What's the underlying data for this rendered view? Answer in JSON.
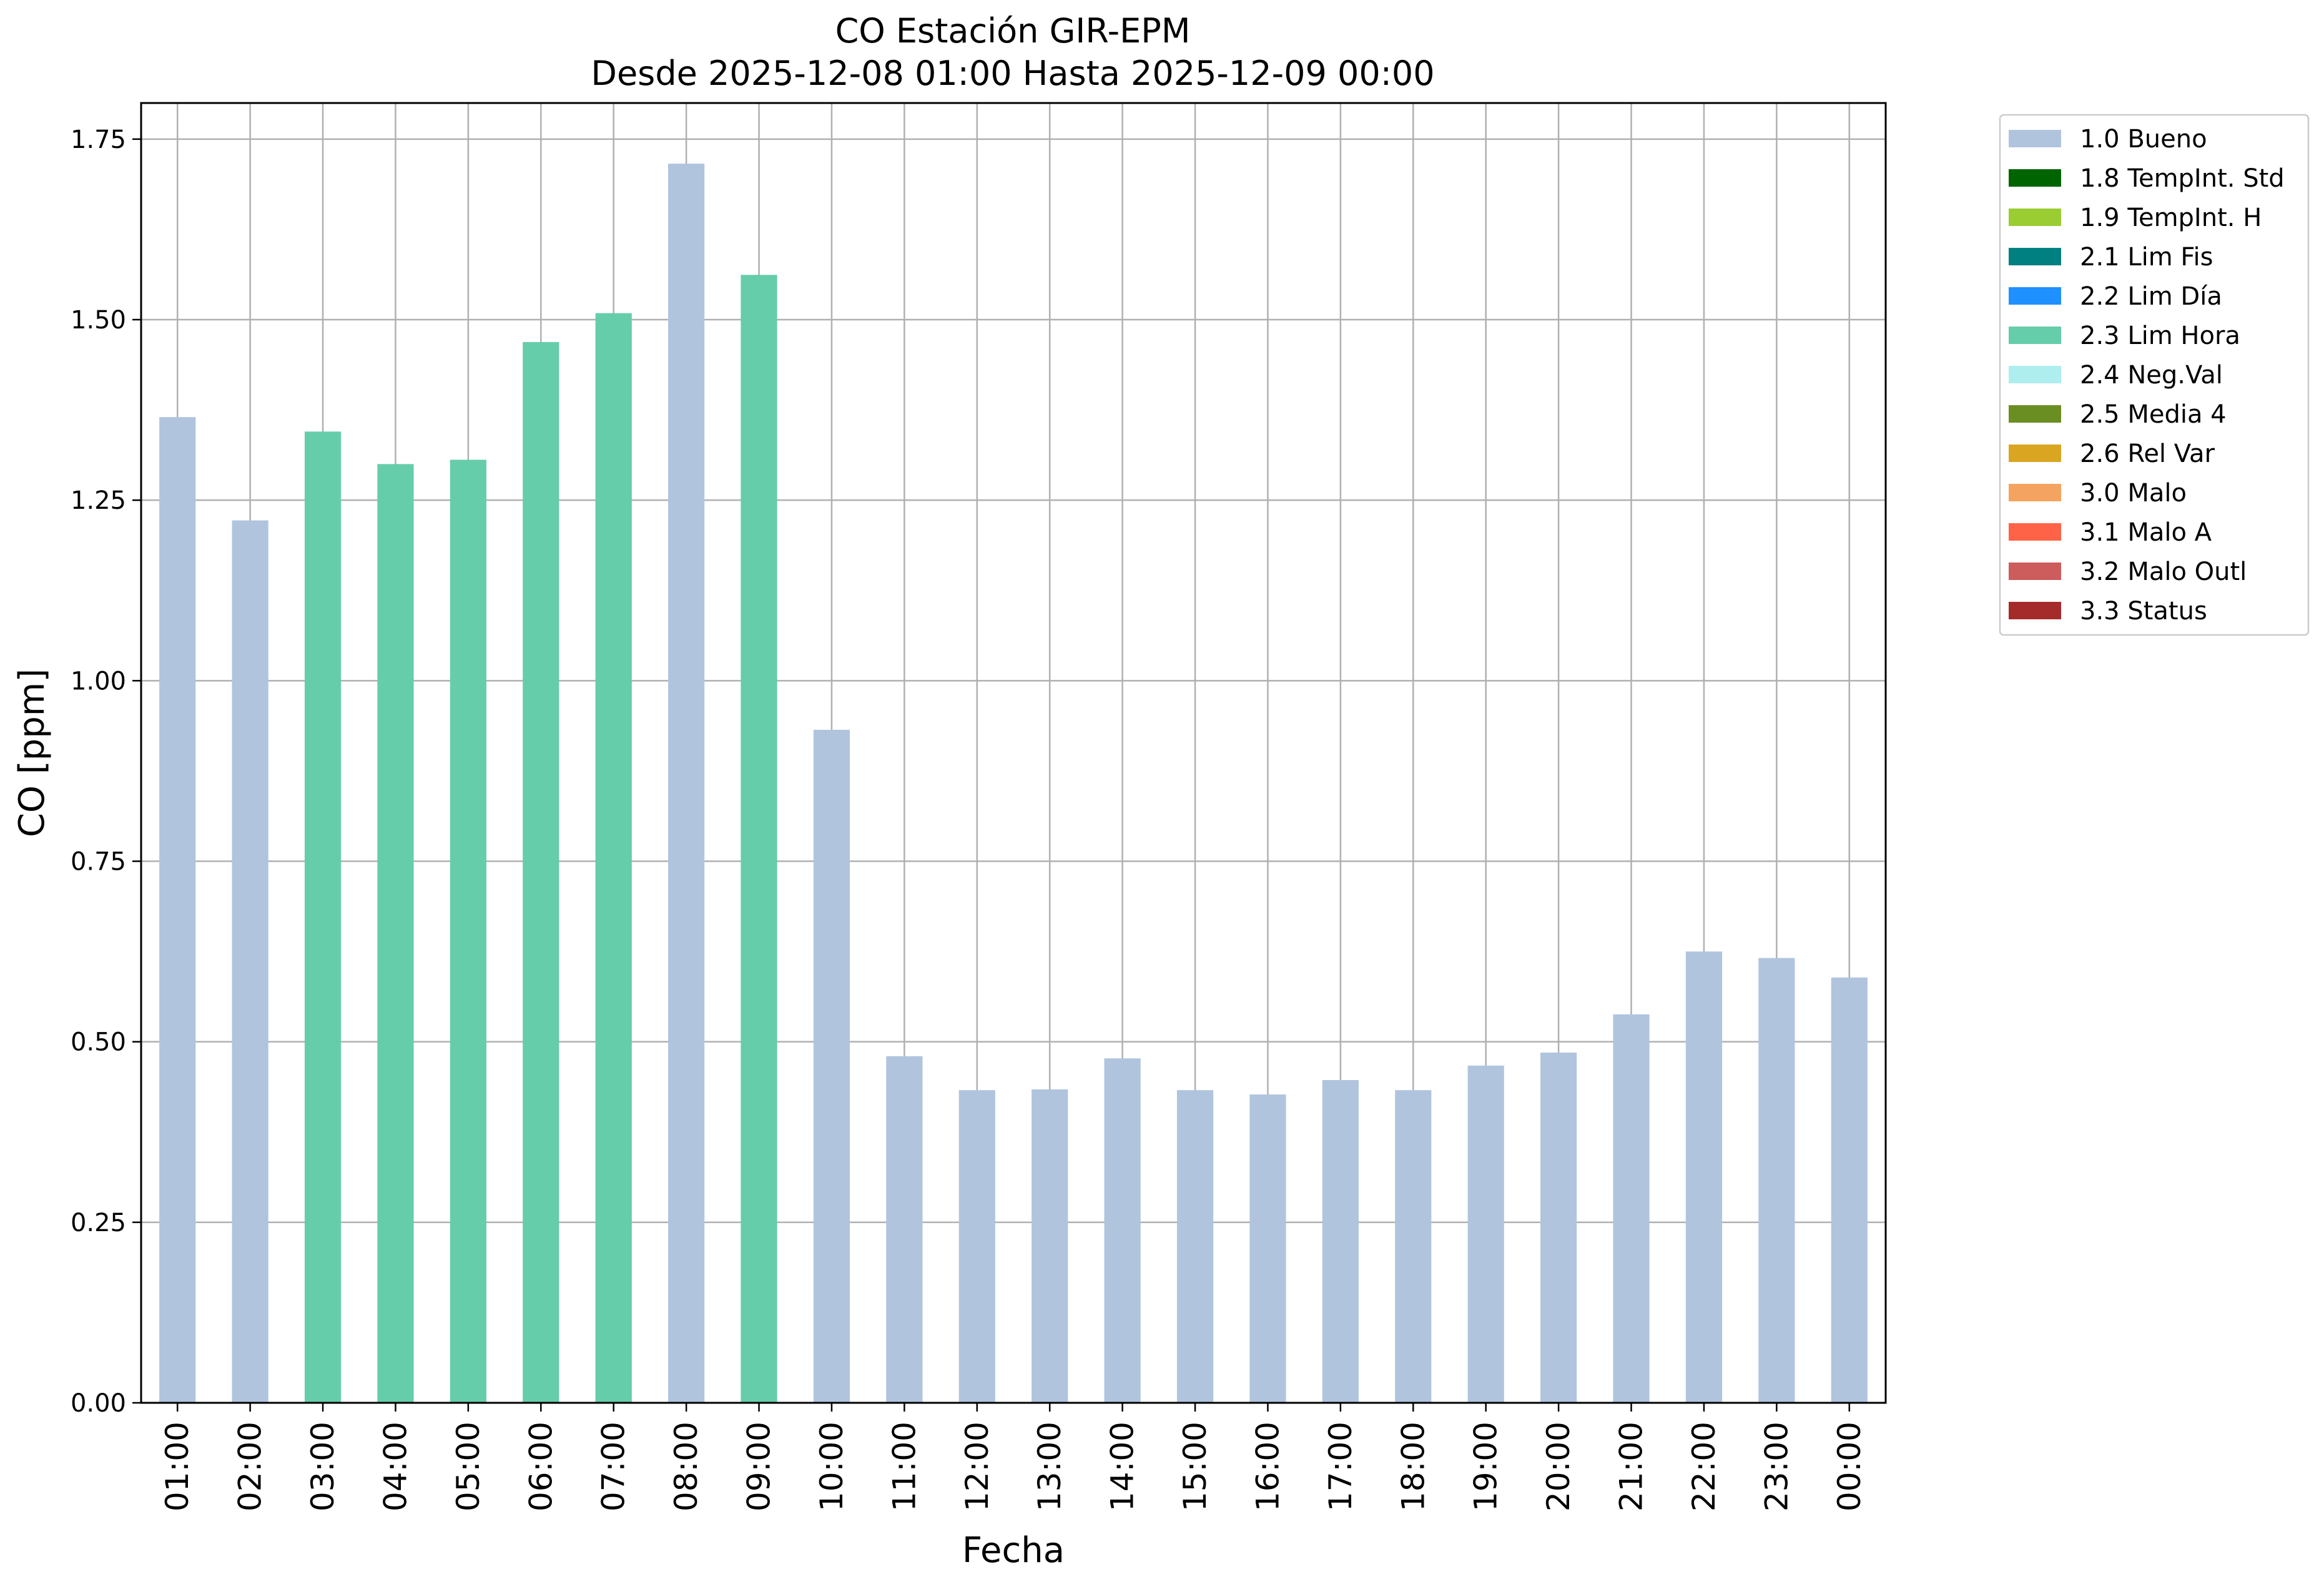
{
  "chart_data": {
    "type": "bar",
    "title": "CO Estación GIR-EPM",
    "subtitle": "Desde 2025-12-08 01:00 Hasta 2025-12-09 00:00",
    "xlabel": "Fecha",
    "ylabel": "CO [ppm]",
    "ylim": [
      0,
      1.8
    ],
    "yticks": [
      "0.00",
      "0.25",
      "0.50",
      "0.75",
      "1.00",
      "1.25",
      "1.50",
      "1.75"
    ],
    "grid": true,
    "legend_position": "outside-top-right",
    "categories": [
      "01:00",
      "02:00",
      "03:00",
      "04:00",
      "05:00",
      "06:00",
      "07:00",
      "08:00",
      "09:00",
      "10:00",
      "11:00",
      "12:00",
      "13:00",
      "14:00",
      "15:00",
      "16:00",
      "17:00",
      "18:00",
      "19:00",
      "20:00",
      "21:00",
      "22:00",
      "23:00",
      "00:00"
    ],
    "values": [
      1.365,
      1.222,
      1.345,
      1.3,
      1.306,
      1.469,
      1.509,
      1.716,
      1.562,
      0.932,
      0.48,
      0.433,
      0.434,
      0.477,
      0.433,
      0.427,
      0.447,
      0.433,
      0.467,
      0.485,
      0.538,
      0.625,
      0.616,
      0.589
    ],
    "flags": [
      "1.0 Bueno",
      "1.0 Bueno",
      "2.3 Lim Hora",
      "2.3 Lim Hora",
      "2.3 Lim Hora",
      "2.3 Lim Hora",
      "2.3 Lim Hora",
      "1.0 Bueno",
      "2.3 Lim Hora",
      "1.0 Bueno",
      "1.0 Bueno",
      "1.0 Bueno",
      "1.0 Bueno",
      "1.0 Bueno",
      "1.0 Bueno",
      "1.0 Bueno",
      "1.0 Bueno",
      "1.0 Bueno",
      "1.0 Bueno",
      "1.0 Bueno",
      "1.0 Bueno",
      "1.0 Bueno",
      "1.0 Bueno",
      "1.0 Bueno"
    ],
    "legend": [
      {
        "label": "1.0 Bueno",
        "color": "#b0c4de"
      },
      {
        "label": "1.8 TempInt. Std",
        "color": "#006400"
      },
      {
        "label": "1.9 TempInt. H",
        "color": "#9acd32"
      },
      {
        "label": "2.1 Lim Fis",
        "color": "#008080"
      },
      {
        "label": "2.2 Lim Día",
        "color": "#1e90ff"
      },
      {
        "label": "2.3 Lim Hora",
        "color": "#66cdaa"
      },
      {
        "label": "2.4 Neg.Val",
        "color": "#afeeee"
      },
      {
        "label": "2.5 Media 4",
        "color": "#6b8e23"
      },
      {
        "label": "2.6 Rel Var",
        "color": "#daa520"
      },
      {
        "label": "3.0 Malo",
        "color": "#f4a460"
      },
      {
        "label": "3.1 Malo A",
        "color": "#ff6347"
      },
      {
        "label": "3.2 Malo Outl",
        "color": "#cd5c5c"
      },
      {
        "label": "3.3 Status",
        "color": "#a52a2a"
      }
    ]
  }
}
